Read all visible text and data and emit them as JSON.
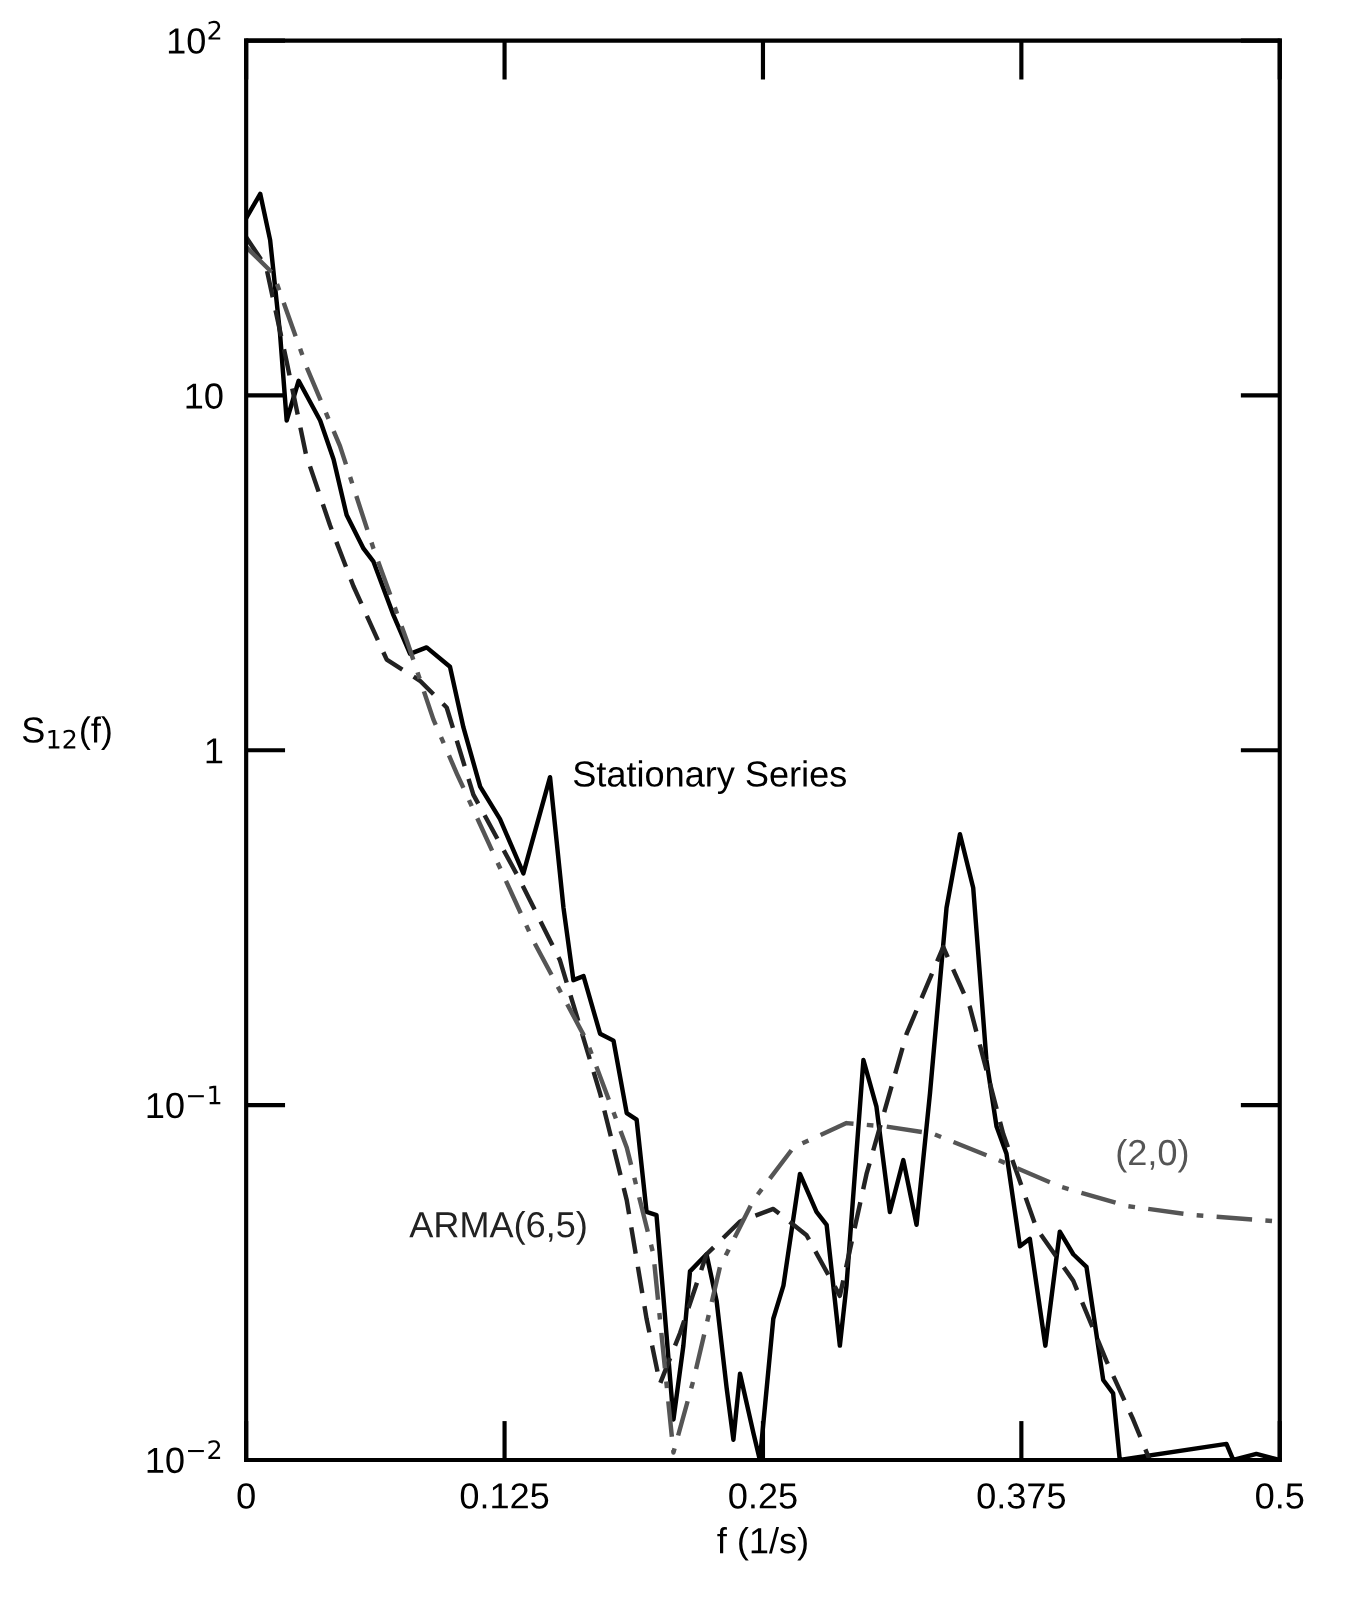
{
  "chart_data": {
    "type": "line",
    "xlabel": "f (1/s)",
    "ylabel": "S$_{12}$(f)",
    "log": "y",
    "grid": false,
    "xlim": [
      0,
      0.5
    ],
    "xticks": [
      0,
      0.125,
      0.25,
      0.375,
      0.5
    ],
    "ylim": [
      0.01,
      100
    ],
    "yticks": [
      {
        "value": 0.01,
        "label": "10$^{−2}$"
      },
      {
        "value": 0.1,
        "label": "10$^{−1}$"
      },
      1,
      10,
      {
        "value": 100,
        "label": "10$^{2}$"
      }
    ],
    "series": [
      {
        "name": "Stationary Series",
        "color": "#000000",
        "line_style": "solid",
        "x": [
          0,
          0.0068,
          0.0116,
          0.0164,
          0.0196,
          0.0254,
          0.0358,
          0.0423,
          0.0486,
          0.0568,
          0.0616,
          0.0713,
          0.0793,
          0.0873,
          0.0986,
          0.1051,
          0.1132,
          0.1228,
          0.1341,
          0.147,
          0.1535,
          0.1583,
          0.1632,
          0.1712,
          0.1777,
          0.1841,
          0.1889,
          0.1937,
          0.1985,
          0.2018,
          0.2067,
          0.2115,
          0.2147,
          0.2227,
          0.2276,
          0.2324,
          0.2357,
          0.2389,
          0.2454,
          0.2485,
          0.255,
          0.2599,
          0.2679,
          0.2759,
          0.2808,
          0.2872,
          0.2904,
          0.2986,
          0.3049,
          0.3114,
          0.3179,
          0.3243,
          0.3308,
          0.3388,
          0.3453,
          0.3517,
          0.3581,
          0.363,
          0.3678,
          0.3743,
          0.3791,
          0.3866,
          0.3936,
          0.4001,
          0.4065,
          0.4146,
          0.4194,
          0.4226,
          0.4742,
          0.4775,
          0.4887,
          0.5
        ],
        "values": [
          31.6,
          37,
          27.4,
          14.9,
          8.5,
          11.0,
          8.5,
          6.6,
          4.6,
          3.7,
          3.4,
          2.4,
          1.87,
          1.95,
          1.72,
          1.16,
          0.79,
          0.64,
          0.45,
          0.84,
          0.36,
          0.225,
          0.231,
          0.159,
          0.152,
          0.095,
          0.091,
          0.05,
          0.049,
          0.029,
          0.013,
          0.021,
          0.034,
          0.038,
          0.028,
          0.016,
          0.0114,
          0.0175,
          0.0119,
          0.01,
          0.025,
          0.031,
          0.064,
          0.05,
          0.046,
          0.021,
          0.031,
          0.134,
          0.099,
          0.05,
          0.07,
          0.046,
          0.108,
          0.36,
          0.58,
          0.41,
          0.134,
          0.087,
          0.073,
          0.04,
          0.042,
          0.021,
          0.044,
          0.038,
          0.035,
          0.0168,
          0.0154,
          0.01,
          0.0111,
          0.01,
          0.0104,
          0.01
        ]
      },
      {
        "name": "ARMA(6,5)",
        "color": "#222222",
        "line_style": "dashed",
        "x": [
          0,
          0.0097,
          0.0194,
          0.029,
          0.0406,
          0.0519,
          0.068,
          0.0841,
          0.097,
          0.1099,
          0.1325,
          0.1518,
          0.1712,
          0.1841,
          0.1937,
          0.2002,
          0.2099,
          0.2227,
          0.2389,
          0.255,
          0.2711,
          0.2872,
          0.3001,
          0.3195,
          0.3372,
          0.3501,
          0.3662,
          0.3823,
          0.4001,
          0.4162,
          0.4291,
          0.4371
        ],
        "values": [
          27.9,
          23,
          12.6,
          6.8,
          4.3,
          2.9,
          1.8,
          1.57,
          1.32,
          0.75,
          0.43,
          0.256,
          0.108,
          0.054,
          0.025,
          0.0164,
          0.0228,
          0.038,
          0.047,
          0.051,
          0.043,
          0.029,
          0.064,
          0.159,
          0.279,
          0.189,
          0.083,
          0.045,
          0.032,
          0.019,
          0.013,
          0.01
        ]
      },
      {
        "name": "(2,0)",
        "color": "#555555",
        "line_style": "dashdot",
        "x": [
          0,
          0.0132,
          0.0293,
          0.0454,
          0.0616,
          0.0777,
          0.0906,
          0.1019,
          0.139,
          0.1647,
          0.1841,
          0.197,
          0.2067,
          0.2164,
          0.2292,
          0.2454,
          0.2648,
          0.2904,
          0.3098,
          0.3324,
          0.3614,
          0.3936,
          0.4258,
          0.4581,
          0.5
        ],
        "values": [
          26.2,
          22,
          12,
          7.2,
          3.7,
          2.04,
          1.22,
          0.86,
          0.29,
          0.152,
          0.076,
          0.038,
          0.0105,
          0.0168,
          0.035,
          0.054,
          0.076,
          0.089,
          0.087,
          0.083,
          0.071,
          0.059,
          0.052,
          0.049,
          0.047
        ]
      }
    ]
  }
}
